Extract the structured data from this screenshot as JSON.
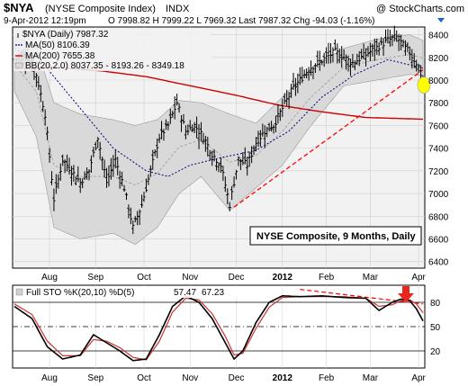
{
  "header": {
    "symbol": "$NYA",
    "name": "(NYSE Composite Index)",
    "exchange": "INDX",
    "watermark": "@ StockCharts.com",
    "datetime": "9-Apr-2012 12:19pm",
    "quote": "O 7998.82  H 7999.22  L 7969.32  Last 7987.32  Chg -94.03 (-1.16%)"
  },
  "legend": {
    "price": "$NYA (Daily) 7987.32",
    "ma50": "MA(50) 8106.39",
    "ma200": "MA(200) 7655.38",
    "bb": "BB(20,2.0) 8037.35 - 8193.26 - 8349.18"
  },
  "annotation": "NYSE Composite, 9 Months, Daily",
  "indicator": {
    "label": "Full STO %K(20,10) %D(5)",
    "k_value": "57.47",
    "d_value": "67.23",
    "ticks": [
      "80",
      "50",
      "20"
    ]
  },
  "x_ticks": [
    "Aug",
    "Sep",
    "Oct",
    "Nov",
    "Dec",
    "2012",
    "Feb",
    "Mar",
    "Apr"
  ],
  "y_ticks": [
    "8400",
    "8200",
    "8000",
    "7800",
    "7600",
    "7400",
    "7200",
    "7000",
    "6800",
    "6600",
    "6400"
  ],
  "colors": {
    "price": "#000000",
    "ma50": "#000080",
    "ma200": "#cc0000",
    "bands": "#d9d9d9",
    "trendline": "#ff0000",
    "stoch_k": "#000000",
    "stoch_d": "#cc3333",
    "highlight": "#ffff00"
  },
  "chart_data": [
    {
      "type": "line",
      "title": "$NYA (Daily) 7987.32",
      "ylim": [
        6350,
        8460
      ],
      "x_months": [
        {
          "label": "Aug",
          "index": 16
        },
        {
          "label": "Sep",
          "index": 37
        },
        {
          "label": "Oct",
          "index": 59
        },
        {
          "label": "Nov",
          "index": 80
        },
        {
          "label": "Dec",
          "index": 101
        },
        {
          "label": "2012",
          "index": 122
        },
        {
          "label": "Feb",
          "index": 142
        },
        {
          "label": "Mar",
          "index": 162
        },
        {
          "label": "Apr",
          "index": 184
        }
      ],
      "close_anchors": [
        [
          0,
          8180
        ],
        [
          6,
          8210
        ],
        [
          10,
          8050
        ],
        [
          14,
          7700
        ],
        [
          18,
          6950
        ],
        [
          22,
          7300
        ],
        [
          26,
          7200
        ],
        [
          30,
          7100
        ],
        [
          34,
          7200
        ],
        [
          38,
          7500
        ],
        [
          42,
          7100
        ],
        [
          46,
          7300
        ],
        [
          50,
          7050
        ],
        [
          54,
          6700
        ],
        [
          58,
          6900
        ],
        [
          62,
          7200
        ],
        [
          66,
          7500
        ],
        [
          70,
          7600
        ],
        [
          74,
          7800
        ],
        [
          78,
          7550
        ],
        [
          82,
          7600
        ],
        [
          86,
          7500
        ],
        [
          90,
          7350
        ],
        [
          94,
          7250
        ],
        [
          98,
          6900
        ],
        [
          102,
          7300
        ],
        [
          106,
          7250
        ],
        [
          110,
          7450
        ],
        [
          114,
          7550
        ],
        [
          118,
          7600
        ],
        [
          122,
          7750
        ],
        [
          126,
          7900
        ],
        [
          130,
          8000
        ],
        [
          134,
          8100
        ],
        [
          138,
          8150
        ],
        [
          142,
          8200
        ],
        [
          146,
          8250
        ],
        [
          150,
          8200
        ],
        [
          154,
          8150
        ],
        [
          158,
          8200
        ],
        [
          162,
          8250
        ],
        [
          166,
          8300
        ],
        [
          170,
          8350
        ],
        [
          174,
          8380
        ],
        [
          178,
          8280
        ],
        [
          180,
          8240
        ],
        [
          184,
          8120
        ],
        [
          186,
          7987
        ]
      ],
      "ma50_anchors": [
        [
          0,
          8280
        ],
        [
          15,
          8100
        ],
        [
          30,
          7750
        ],
        [
          45,
          7400
        ],
        [
          60,
          7200
        ],
        [
          70,
          7150
        ],
        [
          80,
          7250
        ],
        [
          95,
          7320
        ],
        [
          110,
          7380
        ],
        [
          125,
          7550
        ],
        [
          140,
          7850
        ],
        [
          155,
          8050
        ],
        [
          170,
          8180
        ],
        [
          186,
          8106
        ]
      ],
      "ma200_anchors": [
        [
          0,
          8100
        ],
        [
          20,
          8110
        ],
        [
          40,
          8080
        ],
        [
          60,
          8030
        ],
        [
          80,
          7950
        ],
        [
          100,
          7870
        ],
        [
          120,
          7780
        ],
        [
          140,
          7720
        ],
        [
          160,
          7670
        ],
        [
          186,
          7655
        ]
      ],
      "bb_upper_anchors": [
        [
          0,
          8380
        ],
        [
          10,
          8300
        ],
        [
          18,
          7800
        ],
        [
          30,
          7700
        ],
        [
          45,
          7650
        ],
        [
          55,
          7600
        ],
        [
          65,
          7650
        ],
        [
          75,
          7820
        ],
        [
          85,
          7800
        ],
        [
          98,
          7700
        ],
        [
          110,
          7620
        ],
        [
          122,
          7850
        ],
        [
          135,
          8100
        ],
        [
          150,
          8280
        ],
        [
          165,
          8360
        ],
        [
          180,
          8400
        ],
        [
          186,
          8349
        ]
      ],
      "bb_lower_anchors": [
        [
          0,
          7900
        ],
        [
          10,
          7500
        ],
        [
          18,
          6700
        ],
        [
          30,
          6600
        ],
        [
          45,
          6650
        ],
        [
          55,
          6550
        ],
        [
          65,
          6700
        ],
        [
          75,
          7000
        ],
        [
          85,
          7150
        ],
        [
          98,
          6850
        ],
        [
          110,
          7050
        ],
        [
          122,
          7250
        ],
        [
          135,
          7600
        ],
        [
          150,
          7950
        ],
        [
          165,
          8000
        ],
        [
          180,
          8050
        ],
        [
          186,
          8037
        ]
      ],
      "trendline": [
        [
          100,
          6880
        ],
        [
          186,
          8090
        ]
      ]
    },
    {
      "type": "line",
      "title": "Full STO %K(20,10) %D(5) 57.47, 67.23",
      "ylim": [
        0,
        100
      ],
      "reference_levels": [
        80,
        50,
        20
      ],
      "k_anchors": [
        [
          0,
          75
        ],
        [
          8,
          60
        ],
        [
          15,
          25
        ],
        [
          22,
          10
        ],
        [
          30,
          15
        ],
        [
          36,
          40
        ],
        [
          42,
          30
        ],
        [
          48,
          20
        ],
        [
          54,
          8
        ],
        [
          60,
          10
        ],
        [
          66,
          40
        ],
        [
          72,
          75
        ],
        [
          78,
          88
        ],
        [
          84,
          80
        ],
        [
          90,
          60
        ],
        [
          96,
          30
        ],
        [
          100,
          10
        ],
        [
          104,
          20
        ],
        [
          110,
          55
        ],
        [
          116,
          80
        ],
        [
          122,
          88
        ],
        [
          130,
          87
        ],
        [
          140,
          88
        ],
        [
          150,
          86
        ],
        [
          160,
          85
        ],
        [
          166,
          70
        ],
        [
          172,
          80
        ],
        [
          176,
          84
        ],
        [
          180,
          82
        ],
        [
          183,
          72
        ],
        [
          186,
          57
        ]
      ],
      "d_anchors": [
        [
          0,
          78
        ],
        [
          8,
          65
        ],
        [
          15,
          32
        ],
        [
          22,
          14
        ],
        [
          30,
          14
        ],
        [
          36,
          34
        ],
        [
          42,
          32
        ],
        [
          48,
          24
        ],
        [
          54,
          12
        ],
        [
          60,
          9
        ],
        [
          66,
          32
        ],
        [
          72,
          68
        ],
        [
          78,
          85
        ],
        [
          84,
          83
        ],
        [
          90,
          66
        ],
        [
          96,
          38
        ],
        [
          100,
          15
        ],
        [
          104,
          17
        ],
        [
          110,
          48
        ],
        [
          116,
          74
        ],
        [
          122,
          86
        ],
        [
          130,
          87
        ],
        [
          140,
          87
        ],
        [
          150,
          87
        ],
        [
          160,
          85
        ],
        [
          166,
          75
        ],
        [
          172,
          77
        ],
        [
          176,
          82
        ],
        [
          180,
          83
        ],
        [
          183,
          78
        ],
        [
          186,
          67
        ]
      ],
      "trendline": [
        [
          130,
          96
        ],
        [
          186,
          78
        ]
      ]
    }
  ]
}
